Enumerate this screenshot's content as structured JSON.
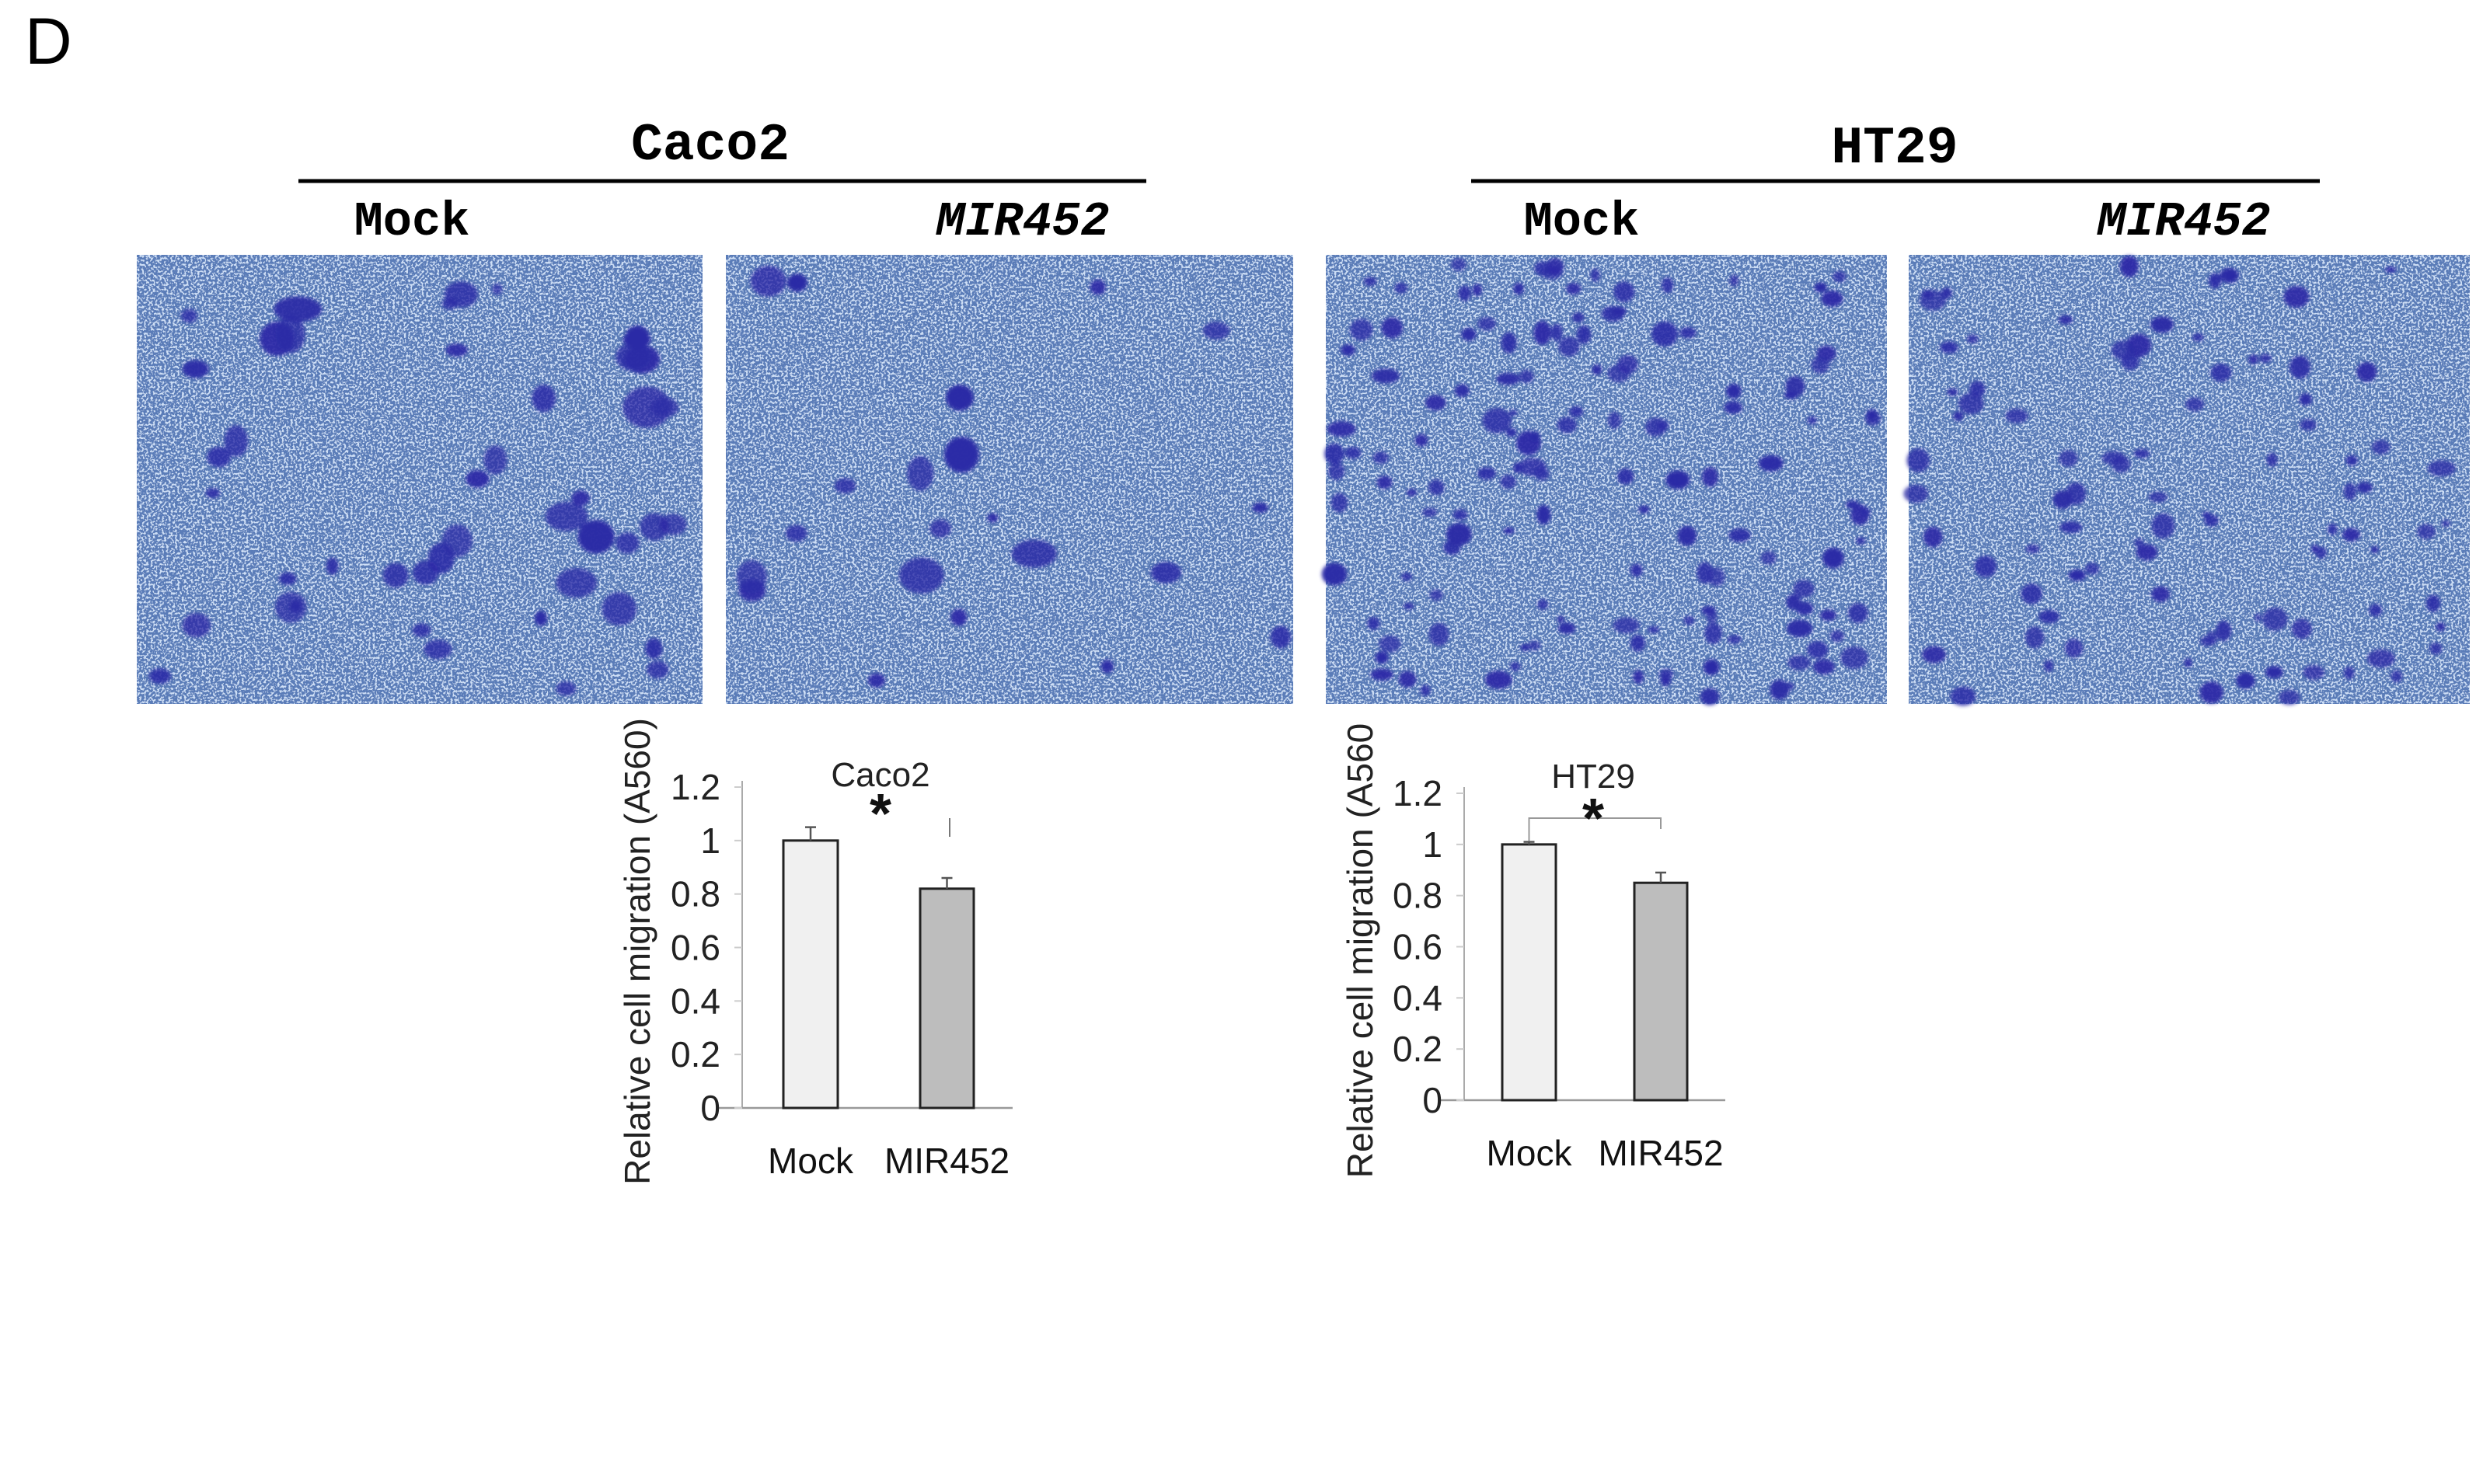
{
  "panel_label": "D",
  "micrographs": {
    "groups": [
      {
        "title": "Caco2",
        "conditions": [
          {
            "label": "Mock",
            "italic": false
          },
          {
            "label": "MIR452",
            "italic": true
          }
        ]
      },
      {
        "title": "HT29",
        "conditions": [
          {
            "label": "Mock",
            "italic": false
          },
          {
            "label": "MIR452",
            "italic": true
          }
        ]
      }
    ],
    "colors": {
      "background": "#5a7bb8",
      "speckle": "#9dbbe6",
      "stained_cell": "#2b2aa6"
    }
  },
  "chart_data": [
    {
      "type": "bar",
      "title": "Caco2",
      "categories": [
        "Mock",
        "MIR452"
      ],
      "values": [
        1.0,
        0.82
      ],
      "error": [
        0.05,
        0.04
      ],
      "colors": [
        "#f0f0f0",
        "#bdbdbd"
      ],
      "ylabel": "Relative cell migration (A560)",
      "xlabel": "",
      "ylim": [
        0,
        1.2
      ],
      "yticks": [
        "0",
        "0.2",
        "0.4",
        "0.6",
        "0.8",
        "1",
        "1.2"
      ],
      "significance": "*",
      "grid": false
    },
    {
      "type": "bar",
      "title": "HT29",
      "categories": [
        "Mock",
        "MIR452"
      ],
      "values": [
        1.0,
        0.85
      ],
      "error": [
        0.01,
        0.04
      ],
      "colors": [
        "#f0f0f0",
        "#bdbdbd"
      ],
      "ylabel": "Relative cell migration (A560",
      "xlabel": "",
      "ylim": [
        0,
        1.2
      ],
      "yticks": [
        "0",
        "0.2",
        "0.4",
        "0.6",
        "0.8",
        "1",
        "1.2"
      ],
      "significance": "*",
      "grid": false
    }
  ]
}
